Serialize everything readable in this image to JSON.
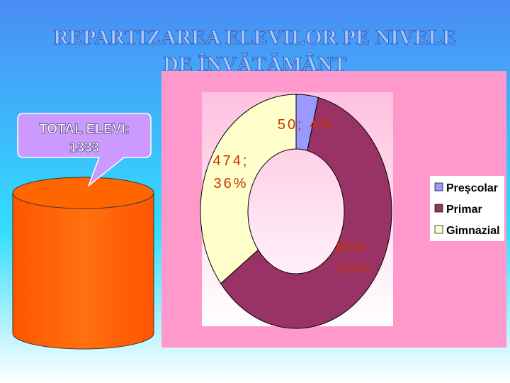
{
  "chart_data": {
    "type": "donut",
    "title": [
      "REPARTIZAREA ELEVILOR PE NIVELE",
      "DE ÎNVĂŢĂMÂNT"
    ],
    "callout": [
      "TOTAL ELEVI:",
      "1333"
    ],
    "categories": [
      "Preşcolar",
      "Primar",
      "Gimnazial"
    ],
    "values": [
      50,
      809,
      474
    ],
    "value_labels": [
      "50; 4%",
      "809; 60%",
      "474; 36%"
    ],
    "colors": [
      "#9999ff",
      "#993366",
      "#ffffcc"
    ],
    "legend": "right"
  }
}
